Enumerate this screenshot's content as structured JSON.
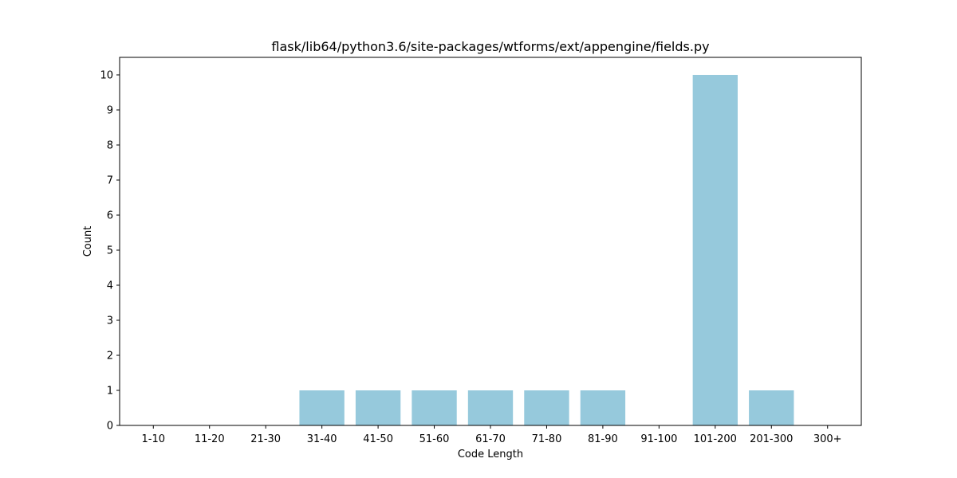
{
  "chart_data": {
    "type": "bar",
    "title": "flask/lib64/python3.6/site-packages/wtforms/ext/appengine/fields.py",
    "xlabel": "Code Length",
    "ylabel": "Count",
    "categories": [
      "1-10",
      "11-20",
      "21-30",
      "31-40",
      "41-50",
      "51-60",
      "61-70",
      "71-80",
      "81-90",
      "91-100",
      "101-200",
      "201-300",
      "300+"
    ],
    "values": [
      0,
      0,
      0,
      1,
      1,
      1,
      1,
      1,
      1,
      0,
      10,
      1,
      0
    ],
    "ylim": [
      0,
      10.5
    ],
    "yticks": [
      0,
      1,
      2,
      3,
      4,
      5,
      6,
      7,
      8,
      9,
      10
    ],
    "bar_color": "#96c9dc",
    "grid": false,
    "legend": "none"
  }
}
